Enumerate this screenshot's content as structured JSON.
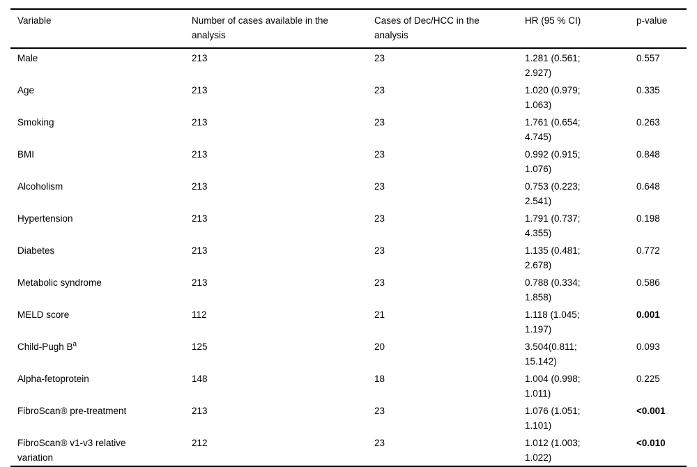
{
  "table": {
    "columns": [
      {
        "label": "Variable"
      },
      {
        "label": "Number of cases available in the analysis"
      },
      {
        "label": "Cases of Dec/HCC in the analysis"
      },
      {
        "label": "HR (95 % CI)"
      },
      {
        "label": "p-value"
      }
    ],
    "rows": [
      {
        "variable": "Male",
        "sup": "",
        "n_cases": "213",
        "dec_hcc_cases": "23",
        "hr": "1.281 (0.561; 2.927)",
        "p_value": "0.557",
        "p_bold": false
      },
      {
        "variable": "Age",
        "sup": "",
        "n_cases": "213",
        "dec_hcc_cases": "23",
        "hr": "1.020 (0.979; 1.063)",
        "p_value": "0.335",
        "p_bold": false
      },
      {
        "variable": "Smoking",
        "sup": "",
        "n_cases": "213",
        "dec_hcc_cases": "23",
        "hr": "1.761 (0.654; 4.745)",
        "p_value": "0.263",
        "p_bold": false
      },
      {
        "variable": "BMI",
        "sup": "",
        "n_cases": "213",
        "dec_hcc_cases": "23",
        "hr": "0.992 (0.915; 1.076)",
        "p_value": "0.848",
        "p_bold": false
      },
      {
        "variable": "Alcoholism",
        "sup": "",
        "n_cases": "213",
        "dec_hcc_cases": "23",
        "hr": "0.753 (0.223; 2.541)",
        "p_value": "0.648",
        "p_bold": false
      },
      {
        "variable": "Hypertension",
        "sup": "",
        "n_cases": "213",
        "dec_hcc_cases": "23",
        "hr": "1.791 (0.737; 4.355)",
        "p_value": "0.198",
        "p_bold": false
      },
      {
        "variable": "Diabetes",
        "sup": "",
        "n_cases": "213",
        "dec_hcc_cases": "23",
        "hr": "1.135 (0.481; 2.678)",
        "p_value": "0.772",
        "p_bold": false
      },
      {
        "variable": "Metabolic syndrome",
        "sup": "",
        "n_cases": "213",
        "dec_hcc_cases": "23",
        "hr": "0.788 (0.334; 1.858)",
        "p_value": "0.586",
        "p_bold": false
      },
      {
        "variable": "MELD score",
        "sup": "",
        "n_cases": "112",
        "dec_hcc_cases": "21",
        "hr": "1.118 (1.045; 1.197)",
        "p_value": "0.001",
        "p_bold": true
      },
      {
        "variable": "Child-Pugh B",
        "sup": "a",
        "n_cases": "125",
        "dec_hcc_cases": "20",
        "hr": "3.504(0.811; 15.142)",
        "p_value": "0.093",
        "p_bold": false
      },
      {
        "variable": "Alpha-fetoprotein",
        "sup": "",
        "n_cases": "148",
        "dec_hcc_cases": "18",
        "hr": "1.004 (0.998; 1.011)",
        "p_value": "0.225",
        "p_bold": false
      },
      {
        "variable": "FibroScan® pre-treatment",
        "sup": "",
        "n_cases": "213",
        "dec_hcc_cases": "23",
        "hr": "1.076 (1.051; 1.101)",
        "p_value": "<0.001",
        "p_bold": true
      },
      {
        "variable": "FibroScan® v1-v3 relative variation",
        "sup": "",
        "n_cases": "212",
        "dec_hcc_cases": "23",
        "hr": "1.012 (1.003; 1.022)",
        "p_value": "<0.010",
        "p_bold": true
      }
    ]
  }
}
